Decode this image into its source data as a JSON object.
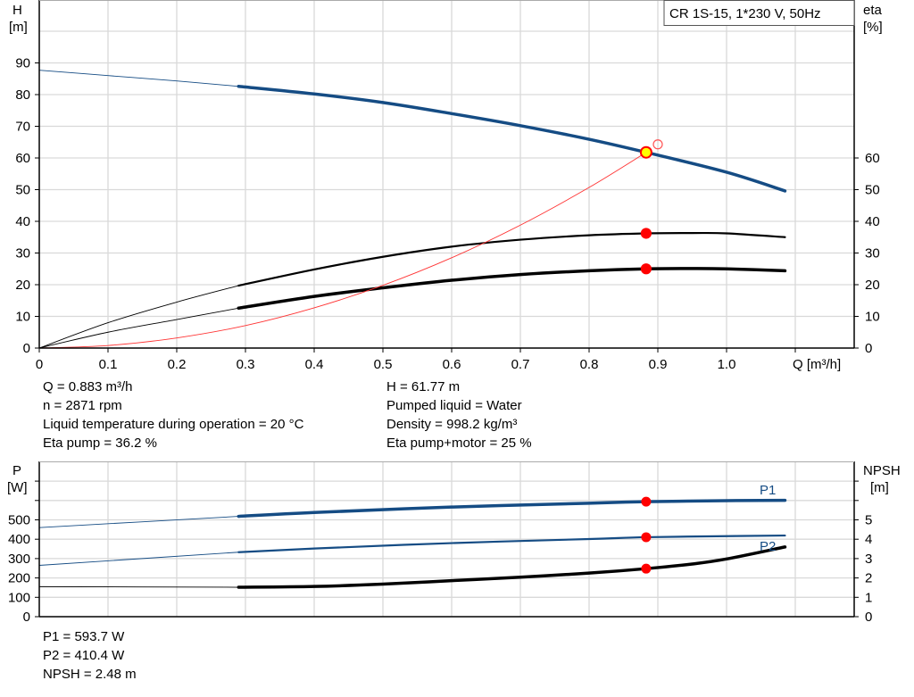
{
  "chart_data": [
    {
      "type": "line",
      "title": "CR 1S-15, 1*230 V, 50Hz",
      "xlabel": "Q [m³/h]",
      "ylabel": "H",
      "ylabel_unit": "[m]",
      "y2label": "eta",
      "y2label_unit": "[%]",
      "xlim": [
        0,
        1.19
      ],
      "ylim": [
        0,
        110
      ],
      "grid": true,
      "x_ticks": [
        "0",
        "0.1",
        "0.2",
        "0.3",
        "0.4",
        "0.5",
        "0.6",
        "0.7",
        "0.8",
        "0.9",
        "1.0"
      ],
      "y_ticks": [
        "0",
        "10",
        "20",
        "30",
        "40",
        "50",
        "60",
        "70",
        "80",
        "90"
      ],
      "y2_ticks": [
        "0",
        "10",
        "20",
        "30",
        "40",
        "50",
        "60"
      ],
      "series": [
        {
          "id": "head",
          "color": "#154c84",
          "thick_from": 0.29,
          "x": [
            0,
            0.1,
            0.2,
            0.29,
            0.4,
            0.5,
            0.6,
            0.7,
            0.8,
            0.883,
            1.0,
            1.085
          ],
          "y": [
            87.7,
            86,
            84.3,
            82.6,
            80.2,
            77.5,
            74,
            70.2,
            65.9,
            61.77,
            55.5,
            49.6
          ]
        },
        {
          "id": "eta-pump",
          "color": "#000000",
          "thick_from": 0.29,
          "thick_width": 2.2,
          "x": [
            0,
            0.1,
            0.2,
            0.29,
            0.4,
            0.5,
            0.6,
            0.7,
            0.8,
            0.883,
            0.95,
            1.0,
            1.085
          ],
          "y": [
            0,
            8,
            14.5,
            19.7,
            24.8,
            28.8,
            32,
            34.2,
            35.6,
            36.2,
            36.3,
            36.2,
            35
          ]
        },
        {
          "id": "eta-pump-motor",
          "color": "#000000",
          "thick_from": 0.29,
          "thick_width": 3.5,
          "x": [
            0,
            0.1,
            0.2,
            0.29,
            0.4,
            0.5,
            0.6,
            0.7,
            0.8,
            0.883,
            0.95,
            1.0,
            1.085
          ],
          "y": [
            0,
            5,
            9,
            12.6,
            16.3,
            19,
            21.4,
            23.2,
            24.4,
            25,
            25.1,
            25,
            24.4
          ]
        },
        {
          "id": "system-curve",
          "color": "#ff3333",
          "x": [
            0,
            0.1,
            0.2,
            0.3,
            0.4,
            0.5,
            0.6,
            0.7,
            0.8,
            0.883
          ],
          "y": [
            0,
            0.8,
            3.2,
            7.1,
            12.7,
            19.8,
            28.5,
            38.8,
            50.7,
            61.77
          ]
        }
      ],
      "markers": [
        {
          "id": "duty-point",
          "x": 0.883,
          "y": 61.77,
          "fill": "#ffff00",
          "stroke": "#ff0000"
        },
        {
          "id": "requested-point",
          "x": 0.9,
          "y": 64.3,
          "fill": "none",
          "stroke": "#ff5555"
        },
        {
          "id": "eta-pump-point",
          "x": 0.883,
          "y": 36.2,
          "fill": "#ff0000",
          "stroke": "#ff0000"
        },
        {
          "id": "eta-total-point",
          "x": 0.883,
          "y": 25,
          "fill": "#ff0000",
          "stroke": "#ff0000"
        }
      ]
    },
    {
      "type": "line",
      "ylabel": "P",
      "ylabel_unit": "[W]",
      "y2label": "NPSH",
      "y2label_unit": "[m]",
      "xlim": [
        0,
        1.19
      ],
      "ylim": [
        0,
        800
      ],
      "y2lim": [
        0,
        8
      ],
      "grid": true,
      "y_ticks": [
        "0",
        "100",
        "200",
        "300",
        "400",
        "500"
      ],
      "y2_ticks": [
        "0",
        "1",
        "2",
        "3",
        "4",
        "5"
      ],
      "series": [
        {
          "id": "P1",
          "name": "P1",
          "color": "#154c84",
          "thick_from": 0.29,
          "thick_width": 3.5,
          "axis": "left",
          "x": [
            0,
            0.29,
            0.4,
            0.6,
            0.8,
            0.883,
            1.0,
            1.085
          ],
          "y": [
            460,
            518,
            538,
            566,
            586,
            593.7,
            599,
            601
          ]
        },
        {
          "id": "P2",
          "name": "P2",
          "color": "#154c84",
          "thick_from": 0.29,
          "thick_width": 2.2,
          "axis": "left",
          "x": [
            0,
            0.29,
            0.4,
            0.6,
            0.8,
            0.883,
            1.0,
            1.085
          ],
          "y": [
            265,
            333,
            352,
            380,
            401,
            410.4,
            416,
            419
          ]
        },
        {
          "id": "NPSH",
          "color": "#000000",
          "thick_from": 0.29,
          "thick_width": 3.5,
          "axis": "right",
          "x": [
            0,
            0.29,
            0.4,
            0.5,
            0.6,
            0.7,
            0.8,
            0.883,
            0.95,
            1.0,
            1.085
          ],
          "y": [
            1.55,
            1.52,
            1.56,
            1.68,
            1.86,
            2.04,
            2.25,
            2.48,
            2.72,
            2.98,
            3.6
          ]
        }
      ],
      "markers": [
        {
          "id": "P1-point",
          "x": 0.883,
          "y": 593.7,
          "axis": "left"
        },
        {
          "id": "P2-point",
          "x": 0.883,
          "y": 410.4,
          "axis": "left"
        },
        {
          "id": "NPSH-point",
          "x": 0.883,
          "y": 2.48,
          "axis": "right"
        }
      ]
    }
  ],
  "results_top": {
    "left": [
      "Q = 0.883 m³/h",
      "n = 2871 rpm",
      "Liquid temperature during operation = 20 °C",
      "Eta pump = 36.2 %"
    ],
    "right": [
      "H = 61.77 m",
      "Pumped liquid = Water",
      "Density = 998.2 kg/m³",
      "Eta pump+motor = 25 %"
    ]
  },
  "results_bottom": [
    "P1 = 593.7 W",
    "P2 = 410.4 W",
    "NPSH = 2.48 m"
  ],
  "colors": {
    "grid": "#d9d9d9",
    "head": "#154c84",
    "marker": "#ff0000"
  }
}
